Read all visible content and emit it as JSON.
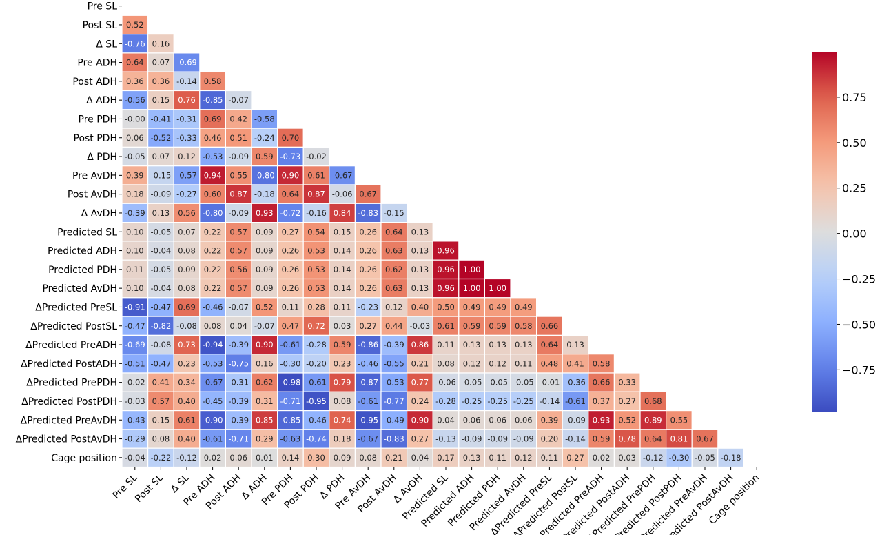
{
  "chart_data": {
    "type": "heatmap",
    "title": "",
    "mask": "upper-triangle",
    "labels": [
      "Pre SL",
      "Post SL",
      "Δ SL",
      "Pre ADH",
      "Post ADH",
      "Δ ADH",
      "Pre PDH",
      "Post PDH",
      "Δ PDH",
      "Pre AvDH",
      "Post AvDH",
      "Δ AvDH",
      "Predicted SL",
      "Predicted ADH",
      "Predicted PDH",
      "Predicted AvDH",
      "ΔPredicted PreSL",
      "ΔPredicted PostSL",
      "ΔPredicted PreADH",
      "ΔPredicted PostADH",
      "ΔPredicted PrePDH",
      "ΔPredicted PostPDH",
      "ΔPredicted PreAvDH",
      "ΔPredicted PostAvDH",
      "Cage position"
    ],
    "values": [
      [],
      [
        0.52
      ],
      [
        -0.76,
        0.16
      ],
      [
        0.64,
        0.07,
        -0.69
      ],
      [
        0.36,
        0.36,
        -0.14,
        0.58
      ],
      [
        -0.56,
        0.15,
        0.76,
        -0.85,
        -0.07
      ],
      [
        -0.0,
        -0.41,
        -0.31,
        0.69,
        0.42,
        -0.58
      ],
      [
        0.06,
        -0.52,
        -0.33,
        0.46,
        0.51,
        -0.24,
        0.7
      ],
      [
        -0.05,
        0.07,
        0.12,
        -0.53,
        -0.09,
        0.59,
        -0.73,
        -0.02
      ],
      [
        0.39,
        -0.15,
        -0.57,
        0.94,
        0.55,
        -0.8,
        0.9,
        0.61,
        -0.67
      ],
      [
        0.18,
        -0.09,
        -0.27,
        0.6,
        0.87,
        -0.18,
        0.64,
        0.87,
        -0.06,
        0.67
      ],
      [
        -0.39,
        0.13,
        0.56,
        -0.8,
        -0.09,
        0.93,
        -0.72,
        -0.16,
        0.84,
        -0.83,
        -0.15
      ],
      [
        0.1,
        -0.05,
        0.07,
        0.22,
        0.57,
        0.09,
        0.27,
        0.54,
        0.15,
        0.26,
        0.64,
        0.13
      ],
      [
        0.1,
        -0.04,
        0.08,
        0.22,
        0.57,
        0.09,
        0.26,
        0.53,
        0.14,
        0.26,
        0.63,
        0.13,
        0.96
      ],
      [
        0.11,
        -0.05,
        0.09,
        0.22,
        0.56,
        0.09,
        0.26,
        0.53,
        0.14,
        0.26,
        0.62,
        0.13,
        0.96,
        1.0
      ],
      [
        0.1,
        -0.04,
        0.08,
        0.22,
        0.57,
        0.09,
        0.26,
        0.53,
        0.14,
        0.26,
        0.63,
        0.13,
        0.96,
        1.0,
        1.0
      ],
      [
        -0.91,
        -0.47,
        0.69,
        -0.46,
        -0.07,
        0.52,
        0.11,
        0.28,
        0.11,
        -0.23,
        0.12,
        0.4,
        0.5,
        0.49,
        0.49,
        0.49
      ],
      [
        -0.47,
        -0.82,
        -0.08,
        0.08,
        0.04,
        -0.07,
        0.47,
        0.72,
        0.03,
        0.27,
        0.44,
        -0.03,
        0.61,
        0.59,
        0.59,
        0.58,
        0.66
      ],
      [
        -0.69,
        -0.08,
        0.73,
        -0.94,
        -0.39,
        0.9,
        -0.61,
        -0.28,
        0.59,
        -0.86,
        -0.39,
        0.86,
        0.11,
        0.13,
        0.13,
        0.13,
        0.64,
        0.13
      ],
      [
        -0.51,
        -0.47,
        0.23,
        -0.53,
        -0.75,
        0.16,
        -0.3,
        -0.2,
        0.23,
        -0.46,
        -0.55,
        0.21,
        0.08,
        0.12,
        0.12,
        0.11,
        0.48,
        0.41,
        0.58
      ],
      [
        -0.02,
        0.41,
        0.34,
        -0.67,
        -0.31,
        0.62,
        -0.98,
        -0.61,
        0.79,
        -0.87,
        -0.53,
        0.77,
        -0.06,
        -0.05,
        -0.05,
        -0.05,
        -0.01,
        -0.36,
        0.66,
        0.33
      ],
      [
        -0.03,
        0.57,
        0.4,
        -0.45,
        -0.39,
        0.31,
        -0.71,
        -0.95,
        0.08,
        -0.61,
        -0.77,
        0.24,
        -0.28,
        -0.25,
        -0.25,
        -0.25,
        -0.14,
        -0.61,
        0.37,
        0.27,
        0.68
      ],
      [
        -0.43,
        0.15,
        0.61,
        -0.9,
        -0.39,
        0.85,
        -0.85,
        -0.46,
        0.74,
        -0.95,
        -0.49,
        0.9,
        0.04,
        0.06,
        0.06,
        0.06,
        0.39,
        -0.09,
        0.93,
        0.52,
        0.89,
        0.55
      ],
      [
        -0.29,
        0.08,
        0.4,
        -0.61,
        -0.71,
        0.29,
        -0.63,
        -0.74,
        0.18,
        -0.67,
        -0.83,
        0.27,
        -0.13,
        -0.09,
        -0.09,
        -0.09,
        0.2,
        -0.14,
        0.59,
        0.78,
        0.64,
        0.81,
        0.67
      ],
      [
        -0.04,
        -0.22,
        -0.12,
        0.02,
        0.06,
        0.01,
        0.14,
        0.3,
        0.09,
        0.08,
        0.21,
        0.04,
        0.17,
        0.13,
        0.11,
        0.12,
        0.11,
        0.27,
        0.02,
        0.03,
        -0.12,
        -0.3,
        -0.05,
        -0.18
      ]
    ],
    "value_format": "2 decimals",
    "vmin": -0.98,
    "vmax": 1.0,
    "colormap": "coolwarm",
    "colorbar": {
      "ticks": [
        0.75,
        0.5,
        0.25,
        0.0,
        -0.25,
        -0.5,
        -0.75
      ],
      "tick_labels": [
        "0.75",
        "0.50",
        "0.25",
        "0.00",
        "−0.25",
        "−0.50",
        "−0.75"
      ],
      "placement": "right"
    },
    "grid": false
  }
}
